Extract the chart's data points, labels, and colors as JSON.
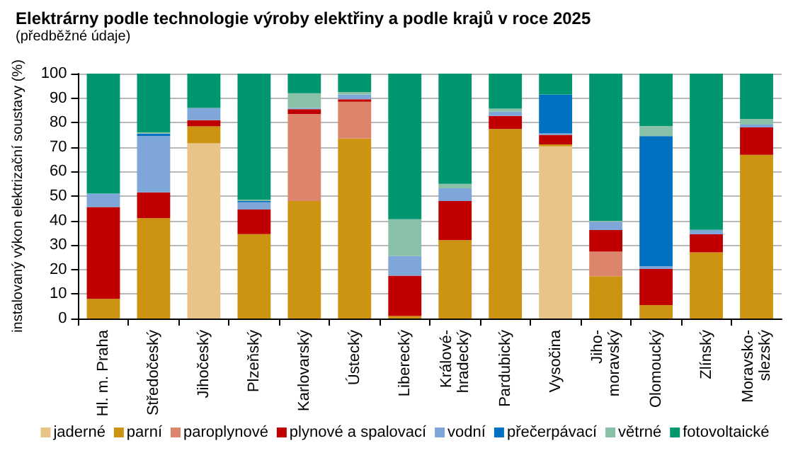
{
  "chart_data": {
    "type": "bar",
    "title": "Elektrárny podle technologie výroby elektřiny a podle krajů v roce 2025",
    "subtitle": "(předběžné údaje)",
    "ylabel": "instalovaný výkon elektrizační soustavy (%)",
    "categories": [
      "Hl. m. Praha",
      "Středočeský",
      "Jihočeský",
      "Plzeňský",
      "Karlovarský",
      "Ústecký",
      "Liberecký",
      "Králové-\nhradecký",
      "Pardubický",
      "Vysočina",
      "Jiho-\nmoravský",
      "Olomoucký",
      "Zlínský",
      "Moravsko-\nslezský"
    ],
    "stacked": true,
    "ylim": [
      0,
      100
    ],
    "yticks": [
      0,
      10,
      20,
      30,
      40,
      50,
      60,
      70,
      80,
      90,
      100
    ],
    "grid": "y",
    "legend": "bottom",
    "series": [
      {
        "name": "jaderné",
        "color": "#e8c486",
        "values": [
          0,
          0,
          71.5,
          0,
          0,
          0,
          0,
          0,
          0,
          70.3,
          0,
          0,
          0,
          0
        ]
      },
      {
        "name": "parní",
        "color": "#cc9410",
        "values": [
          8,
          41,
          7,
          34.5,
          48,
          73.5,
          1,
          32,
          77.4,
          0.8,
          17.3,
          5.5,
          27,
          66.8
        ]
      },
      {
        "name": "paroplynové",
        "color": "#dc846c",
        "values": [
          0,
          0,
          0,
          0,
          35.5,
          15,
          0,
          0,
          0,
          0,
          10,
          0,
          0,
          0
        ]
      },
      {
        "name": "plynové a spalovací",
        "color": "#c00000",
        "values": [
          37.5,
          10.5,
          2.5,
          10,
          2,
          1,
          16.5,
          16,
          5.3,
          3.9,
          8.8,
          14.7,
          7.4,
          11.2
        ]
      },
      {
        "name": "vodní",
        "color": "#7fa6d8",
        "values": [
          5.5,
          23,
          5,
          3,
          0.5,
          2,
          8,
          5.2,
          1.8,
          0.6,
          3.4,
          1.2,
          1.8,
          1.2
        ]
      },
      {
        "name": "přečerpávací",
        "color": "#0070c0",
        "values": [
          0,
          1,
          0,
          0.5,
          0,
          0,
          0,
          0,
          0,
          15.9,
          0,
          53.1,
          0,
          0
        ]
      },
      {
        "name": "větrné",
        "color": "#88c0a8",
        "values": [
          0,
          0.5,
          0,
          0.5,
          6,
          1,
          15,
          1.8,
          1.2,
          0,
          0.4,
          4.1,
          0,
          2.3
        ]
      },
      {
        "name": "fotovoltaické",
        "color": "#009670",
        "values": [
          49,
          24,
          14,
          51.5,
          8,
          7.5,
          59.5,
          45,
          14.3,
          8.5,
          60.1,
          21.4,
          63.8,
          18.5
        ]
      }
    ]
  }
}
